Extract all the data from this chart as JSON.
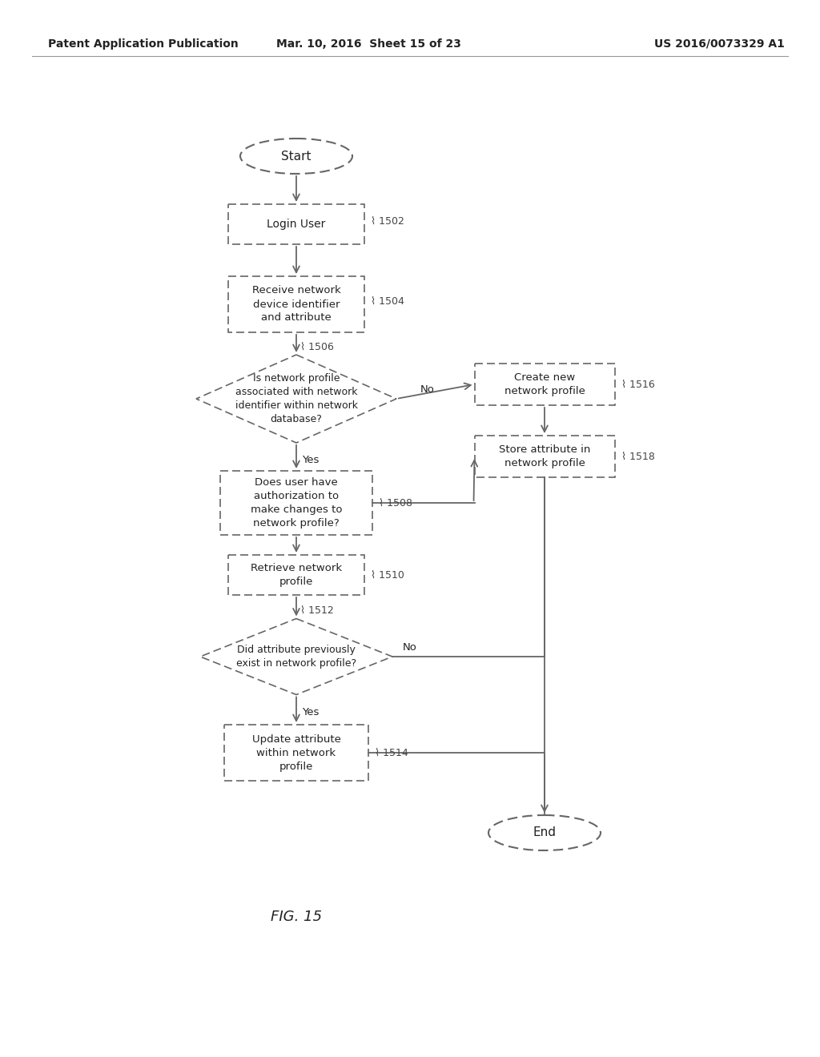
{
  "header_left": "Patent Application Publication",
  "header_mid": "Mar. 10, 2016  Sheet 15 of 23",
  "header_right": "US 2016/0073329 A1",
  "figure_label": "FIG. 15",
  "background_color": "#ffffff",
  "line_color": "#666666",
  "text_color": "#222222",
  "ref_color": "#444444"
}
